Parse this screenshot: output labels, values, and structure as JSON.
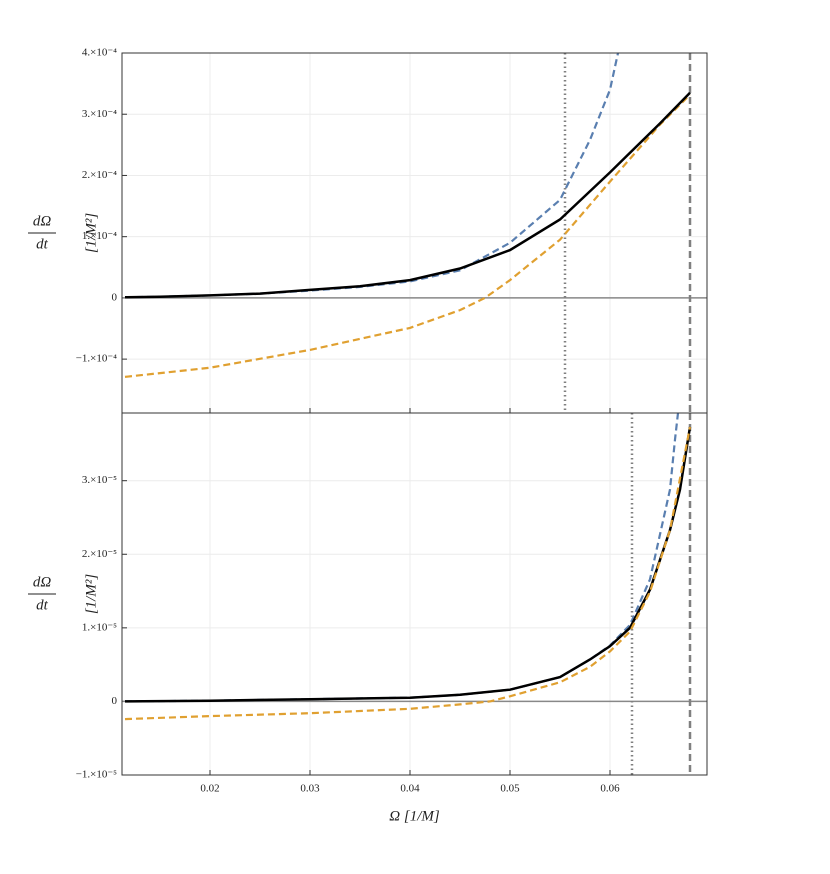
{
  "chart_data": [
    {
      "type": "line",
      "xlim": [
        0.0112,
        0.0697
      ],
      "ylim": [
        -0.000188,
        0.0004
      ],
      "xticks": [
        0.02,
        0.03,
        0.04,
        0.05,
        0.06
      ],
      "yticks": [
        {
          "value": -0.0001,
          "label": "−1.×10⁻⁴"
        },
        0,
        {
          "value": 0.0001,
          "label": "1.×10⁻⁴"
        },
        {
          "value": 0.0002,
          "label": "2.×10⁻⁴"
        },
        {
          "value": 0.0003,
          "label": "3.×10⁻⁴"
        },
        {
          "value": 0.0004,
          "label": "4.×10⁻⁴"
        }
      ],
      "grid": true,
      "hline": 0,
      "ylabel": {
        "numerator": "dΩ",
        "denominator": "dt",
        "unit": "[1/M²]"
      },
      "vlines": [
        {
          "x": 0.0555,
          "style": "dotted"
        },
        {
          "x": 0.068,
          "style": "dashed"
        }
      ],
      "series": [
        {
          "color": "#e0a030",
          "dash": true,
          "x": [
            0.0115,
            0.02,
            0.03,
            0.04,
            0.045,
            0.0475,
            0.05,
            0.055,
            0.06,
            0.065,
            0.068
          ],
          "values": [
            -0.000129,
            -0.000114,
            -8.5e-05,
            -4.9e-05,
            -2e-05,
            0,
            2.9e-05,
            9.5e-05,
            0.00019,
            0.000283,
            0.000332
          ]
        },
        {
          "color": "#5a7fb0",
          "dash": true,
          "x": [
            0.0115,
            0.015,
            0.02,
            0.025,
            0.03,
            0.035,
            0.04,
            0.045,
            0.05,
            0.055,
            0.058,
            0.06,
            0.0608
          ],
          "values": [
            1e-06,
            2e-06,
            4e-06,
            7e-06,
            1.2e-05,
            1.8e-05,
            2.7e-05,
            4.5e-05,
            9e-05,
            0.00016,
            0.000258,
            0.00034,
            0.0004
          ]
        },
        {
          "color": "#000000",
          "dash": false,
          "x": [
            0.0115,
            0.015,
            0.02,
            0.025,
            0.03,
            0.035,
            0.04,
            0.045,
            0.05,
            0.055,
            0.06,
            0.065,
            0.068
          ],
          "values": [
            1e-06,
            2e-06,
            4e-06,
            7e-06,
            1.3e-05,
            1.9e-05,
            2.9e-05,
            4.8e-05,
            7.8e-05,
            0.000128,
            0.000205,
            0.000285,
            0.000335
          ]
        }
      ]
    },
    {
      "type": "line",
      "xlim": [
        0.0112,
        0.0697
      ],
      "ylim": [
        -1e-05,
        3.92e-05
      ],
      "xticks": [
        0.02,
        0.03,
        0.04,
        0.05,
        0.06
      ],
      "yticks": [
        {
          "value": -1e-05,
          "label": "−1.×10⁻⁵"
        },
        0,
        {
          "value": 1e-05,
          "label": "1.×10⁻⁵"
        },
        {
          "value": 2e-05,
          "label": "2.×10⁻⁵"
        },
        {
          "value": 3e-05,
          "label": "3.×10⁻⁵"
        }
      ],
      "grid": true,
      "hline": 0,
      "xlabel": "Ω [1/M]",
      "ylabel": {
        "numerator": "dΩ",
        "denominator": "dt",
        "unit": "[1/M²]"
      },
      "vlines": [
        {
          "x": 0.0622,
          "style": "dotted"
        },
        {
          "x": 0.068,
          "style": "dashed"
        }
      ],
      "series": [
        {
          "color": "#5a7fb0",
          "dash": true,
          "x": [
            0.0115,
            0.02,
            0.03,
            0.04,
            0.045,
            0.05,
            0.055,
            0.058,
            0.06,
            0.062,
            0.064,
            0.066,
            0.0665,
            0.0668
          ],
          "values": [
            0,
            1e-07,
            3e-07,
            5e-07,
            9e-07,
            1.6e-06,
            3.3e-06,
            5.7e-06,
            7.6e-06,
            1.04e-05,
            1.66e-05,
            2.88e-05,
            3.56e-05,
            3.92e-05
          ]
        },
        {
          "color": "#000000",
          "dash": false,
          "x": [
            0.0115,
            0.02,
            0.03,
            0.04,
            0.045,
            0.05,
            0.055,
            0.058,
            0.06,
            0.062,
            0.064,
            0.066,
            0.067,
            0.068
          ],
          "values": [
            0,
            1e-07,
            3e-07,
            5e-07,
            9e-07,
            1.6e-06,
            3.3e-06,
            5.7e-06,
            7.5e-06,
            1e-05,
            1.52e-05,
            2.33e-05,
            2.88e-05,
            3.73e-05
          ]
        },
        {
          "color": "#e0a030",
          "dash": true,
          "x": [
            0.0115,
            0.02,
            0.03,
            0.04,
            0.045,
            0.048,
            0.05,
            0.055,
            0.058,
            0.06,
            0.062,
            0.064,
            0.066,
            0.068
          ],
          "values": [
            -2.4e-06,
            -2e-06,
            -1.6e-06,
            -1e-06,
            -4e-07,
            0,
            7e-07,
            2.6e-06,
            4.7e-06,
            6.8e-06,
            9.5e-06,
            1.49e-05,
            2.33e-05,
            3.73e-05
          ]
        }
      ]
    }
  ]
}
